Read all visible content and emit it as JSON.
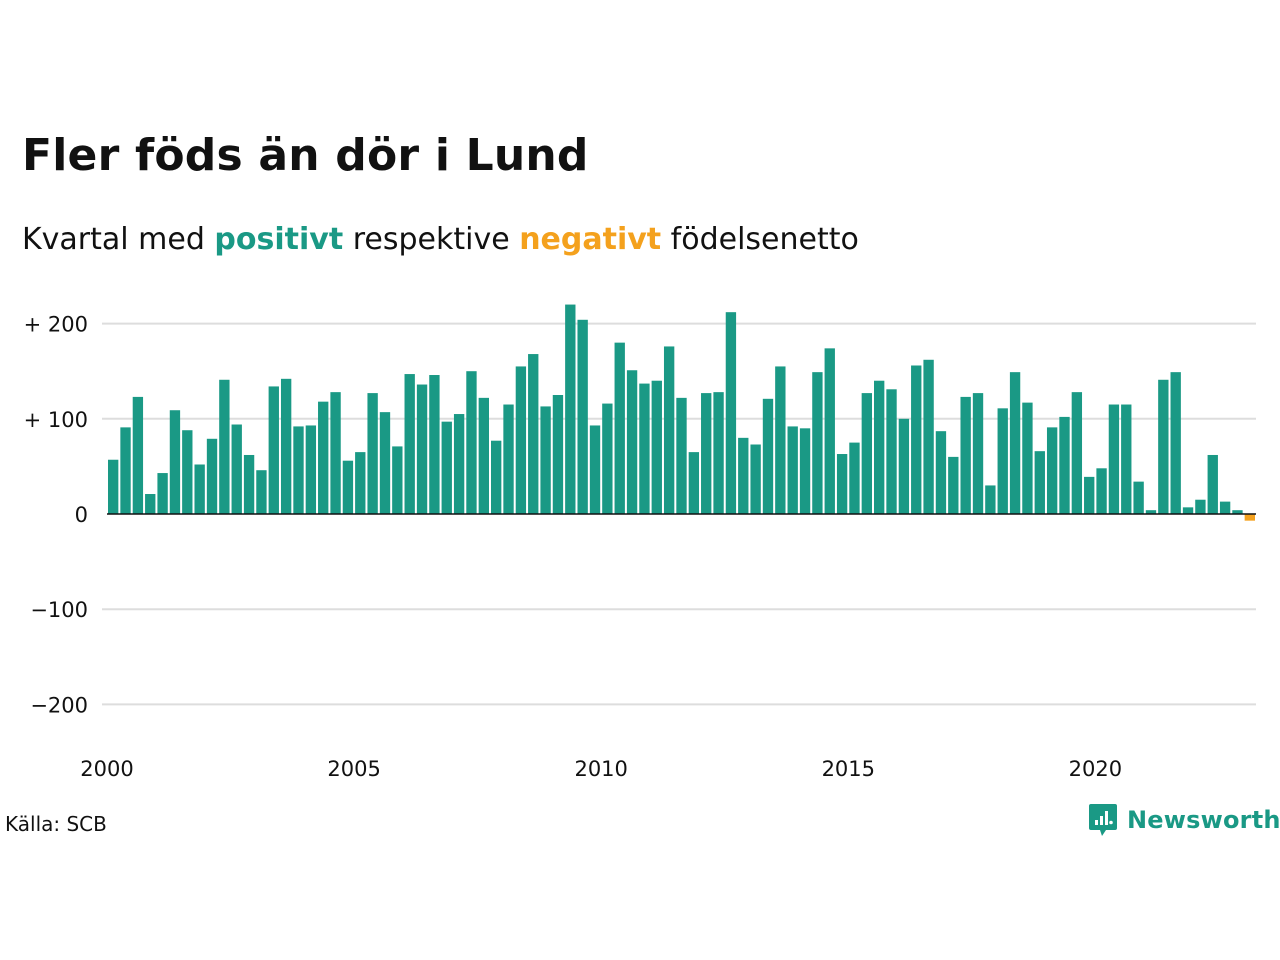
{
  "title": "Fler föds än dör i Lund",
  "subtitle": {
    "prefix": "Kvartal med ",
    "positive": "positivt",
    "middle": " respektive ",
    "negative": "negativt",
    "suffix": " födelsenetto"
  },
  "source": "Källa: SCB",
  "logo": {
    "text": "Newsworthy",
    "icon": "newsworthy-logo-icon"
  },
  "colors": {
    "positive": "#1a9985",
    "negative": "#f4a11d",
    "grid": "#dddddd",
    "axis": "#111111"
  },
  "chart_data": {
    "type": "bar",
    "title": "Fler föds än dör i Lund",
    "subtitle": "Kvartal med positivt respektive negativt födelsenetto",
    "xlabel": "",
    "ylabel": "",
    "ylim": [
      -200,
      230
    ],
    "x_range": [
      2000,
      2023.25
    ],
    "grid": true,
    "y_ticks": [
      {
        "value": 200,
        "label": "+ 200"
      },
      {
        "value": 100,
        "label": "+ 100"
      },
      {
        "value": 0,
        "label": "0"
      },
      {
        "value": -100,
        "label": "−100"
      },
      {
        "value": -200,
        "label": "−200"
      }
    ],
    "x_ticks": [
      {
        "value": 2000,
        "label": "2000"
      },
      {
        "value": 2005,
        "label": "2005"
      },
      {
        "value": 2010,
        "label": "2010"
      },
      {
        "value": 2015,
        "label": "2015"
      },
      {
        "value": 2020,
        "label": "2020"
      }
    ],
    "categories": [
      "2000 Q1",
      "2000 Q2",
      "2000 Q3",
      "2000 Q4",
      "2001 Q1",
      "2001 Q2",
      "2001 Q3",
      "2001 Q4",
      "2002 Q1",
      "2002 Q2",
      "2002 Q3",
      "2002 Q4",
      "2003 Q1",
      "2003 Q2",
      "2003 Q3",
      "2003 Q4",
      "2004 Q1",
      "2004 Q2",
      "2004 Q3",
      "2004 Q4",
      "2005 Q1",
      "2005 Q2",
      "2005 Q3",
      "2005 Q4",
      "2006 Q1",
      "2006 Q2",
      "2006 Q3",
      "2006 Q4",
      "2007 Q1",
      "2007 Q2",
      "2007 Q3",
      "2007 Q4",
      "2008 Q1",
      "2008 Q2",
      "2008 Q3",
      "2008 Q4",
      "2009 Q1",
      "2009 Q2",
      "2009 Q3",
      "2009 Q4",
      "2010 Q1",
      "2010 Q2",
      "2010 Q3",
      "2010 Q4",
      "2011 Q1",
      "2011 Q2",
      "2011 Q3",
      "2011 Q4",
      "2012 Q1",
      "2012 Q2",
      "2012 Q3",
      "2012 Q4",
      "2013 Q1",
      "2013 Q2",
      "2013 Q3",
      "2013 Q4",
      "2014 Q1",
      "2014 Q2",
      "2014 Q3",
      "2014 Q4",
      "2015 Q1",
      "2015 Q2",
      "2015 Q3",
      "2015 Q4",
      "2016 Q1",
      "2016 Q2",
      "2016 Q3",
      "2016 Q4",
      "2017 Q1",
      "2017 Q2",
      "2017 Q3",
      "2017 Q4",
      "2018 Q1",
      "2018 Q2",
      "2018 Q3",
      "2018 Q4",
      "2019 Q1",
      "2019 Q2",
      "2019 Q3",
      "2019 Q4",
      "2020 Q1",
      "2020 Q2",
      "2020 Q3",
      "2020 Q4",
      "2021 Q1",
      "2021 Q2",
      "2021 Q3",
      "2021 Q4",
      "2022 Q1",
      "2022 Q2",
      "2022 Q3",
      "2022 Q4",
      "2023 Q1"
    ],
    "values": [
      57,
      91,
      123,
      21,
      43,
      109,
      88,
      52,
      79,
      141,
      94,
      62,
      46,
      134,
      142,
      92,
      93,
      118,
      128,
      56,
      65,
      127,
      107,
      71,
      147,
      136,
      146,
      97,
      105,
      150,
      122,
      77,
      115,
      155,
      168,
      113,
      125,
      220,
      204,
      93,
      116,
      180,
      151,
      137,
      140,
      176,
      122,
      65,
      127,
      128,
      212,
      80,
      73,
      121,
      155,
      92,
      90,
      149,
      174,
      63,
      75,
      127,
      140,
      131,
      100,
      156,
      162,
      87,
      60,
      123,
      127,
      30,
      111,
      149,
      117,
      66,
      91,
      102,
      128,
      39,
      48,
      115,
      115,
      34,
      4,
      141,
      149,
      7,
      15,
      62,
      13,
      4,
      -7
    ]
  }
}
